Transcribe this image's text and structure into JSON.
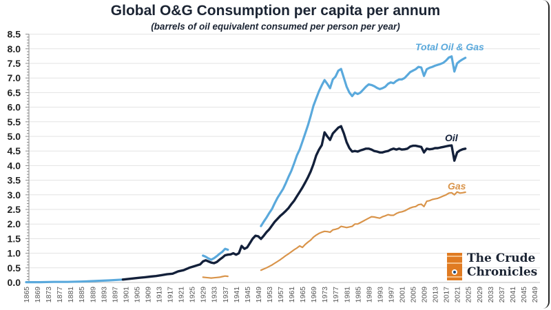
{
  "header": {
    "title": "Global O&G Consumption per capita per annum",
    "subtitle": "(barrels of oil equivalent consumed per person per year)"
  },
  "logo": {
    "line1": "The Crude",
    "line2": "Chronicles",
    "icon": "oil-barrel-icon"
  },
  "chart_data": {
    "type": "line",
    "title": "Global O&G Consumption per capita per annum",
    "subtitle": "(barrels of oil equivalent consumed per person per year)",
    "xlabel": "",
    "ylabel": "",
    "xlim": [
      1865,
      2049
    ],
    "ylim": [
      0,
      8.5
    ],
    "grid": true,
    "y_ticks": [
      "0.0",
      "0.5",
      "1.0",
      "1.5",
      "2.0",
      "2.5",
      "3.0",
      "3.5",
      "4.0",
      "4.5",
      "5.0",
      "5.5",
      "6.0",
      "6.5",
      "7.0",
      "7.5",
      "8.0",
      "8.5"
    ],
    "x_ticks": [
      "1865",
      "1869",
      "1873",
      "1877",
      "1881",
      "1885",
      "1889",
      "1893",
      "1897",
      "1901",
      "1905",
      "1909",
      "1913",
      "1917",
      "1921",
      "1925",
      "1929",
      "1933",
      "1937",
      "1941",
      "1945",
      "1949",
      "1953",
      "1957",
      "1961",
      "1965",
      "1969",
      "1973",
      "1977",
      "1981",
      "1985",
      "1989",
      "1993",
      "1997",
      "2001",
      "2005",
      "2009",
      "2013",
      "2017",
      "2021",
      "2025",
      "2029",
      "2033",
      "2037",
      "2041",
      "2045",
      "2049"
    ],
    "legend": "inline-labels",
    "series": [
      {
        "name": "Total Oil & Gas",
        "label": "Total Oil & Gas",
        "color": "#5aa9dc",
        "segments": [
          {
            "x": [
              1865,
              1870,
              1875,
              1880,
              1885,
              1890,
              1895,
              1900
            ],
            "y": [
              0.01,
              0.01,
              0.02,
              0.02,
              0.03,
              0.05,
              0.07,
              0.1
            ]
          },
          {
            "x": [
              1929,
              1930,
              1931,
              1932,
              1933,
              1934,
              1935,
              1936,
              1937,
              1938
            ],
            "y": [
              0.92,
              0.88,
              0.82,
              0.78,
              0.83,
              0.9,
              0.98,
              1.05,
              1.15,
              1.12
            ]
          },
          {
            "x": [
              1950,
              1951,
              1952,
              1953,
              1954,
              1955,
              1956,
              1957,
              1958,
              1959,
              1960,
              1961,
              1962,
              1963,
              1964,
              1965,
              1966,
              1967,
              1968,
              1969,
              1970,
              1971,
              1972,
              1973,
              1974,
              1975,
              1976,
              1977,
              1978,
              1979,
              1980,
              1981,
              1982,
              1983,
              1984,
              1985,
              1986,
              1987,
              1988,
              1989,
              1990,
              1991,
              1992,
              1993,
              1994,
              1995,
              1996,
              1997,
              1998,
              1999,
              2000,
              2001,
              2002,
              2003,
              2004,
              2005,
              2006,
              2007,
              2008,
              2009,
              2010,
              2011,
              2012,
              2013,
              2014,
              2015,
              2016,
              2017,
              2018,
              2019,
              2020,
              2021,
              2022,
              2023,
              2024
            ],
            "y": [
              1.93,
              2.08,
              2.22,
              2.38,
              2.52,
              2.72,
              2.9,
              3.05,
              3.2,
              3.4,
              3.62,
              3.82,
              4.08,
              4.35,
              4.55,
              4.82,
              5.1,
              5.38,
              5.7,
              6.05,
              6.3,
              6.55,
              6.75,
              6.93,
              6.8,
              6.65,
              6.95,
              7.05,
              7.25,
              7.31,
              7.0,
              6.7,
              6.5,
              6.38,
              6.5,
              6.45,
              6.5,
              6.6,
              6.7,
              6.78,
              6.76,
              6.72,
              6.66,
              6.62,
              6.65,
              6.7,
              6.8,
              6.85,
              6.82,
              6.9,
              6.95,
              6.95,
              7.0,
              7.1,
              7.2,
              7.25,
              7.3,
              7.38,
              7.36,
              7.07,
              7.3,
              7.35,
              7.38,
              7.42,
              7.45,
              7.48,
              7.52,
              7.6,
              7.7,
              7.74,
              7.22,
              7.5,
              7.58,
              7.64,
              7.69
            ]
          }
        ]
      },
      {
        "name": "Oil",
        "label": "Oil",
        "color": "#13203a",
        "segments": [
          {
            "x": [
              1900,
              1902,
              1904,
              1906,
              1908,
              1910,
              1912,
              1914,
              1916,
              1918,
              1920,
              1922,
              1924,
              1926,
              1928,
              1929,
              1930,
              1931,
              1932,
              1933,
              1934,
              1935,
              1936,
              1937,
              1938,
              1939,
              1940,
              1941,
              1942,
              1943,
              1944,
              1945,
              1946,
              1947,
              1948,
              1949,
              1950,
              1951,
              1952,
              1953,
              1954,
              1955,
              1956,
              1957,
              1958,
              1959,
              1960,
              1961,
              1962,
              1963,
              1964,
              1965,
              1966,
              1967,
              1968,
              1969,
              1970,
              1971,
              1972,
              1973,
              1974,
              1975,
              1976,
              1977,
              1978,
              1979,
              1980,
              1981,
              1982,
              1983,
              1984,
              1985,
              1986,
              1987,
              1988,
              1989,
              1990,
              1991,
              1992,
              1993,
              1994,
              1995,
              1996,
              1997,
              1998,
              1999,
              2000,
              2001,
              2002,
              2003,
              2004,
              2005,
              2006,
              2007,
              2008,
              2009,
              2010,
              2011,
              2012,
              2013,
              2014,
              2015,
              2016,
              2017,
              2018,
              2019,
              2020,
              2021,
              2022,
              2023,
              2024
            ],
            "y": [
              0.1,
              0.12,
              0.14,
              0.16,
              0.18,
              0.2,
              0.22,
              0.25,
              0.28,
              0.3,
              0.38,
              0.42,
              0.5,
              0.56,
              0.62,
              0.72,
              0.76,
              0.72,
              0.68,
              0.66,
              0.7,
              0.78,
              0.85,
              0.93,
              0.95,
              0.96,
              1.0,
              0.95,
              1.0,
              1.25,
              1.15,
              1.2,
              1.35,
              1.5,
              1.6,
              1.58,
              1.49,
              1.6,
              1.72,
              1.82,
              1.95,
              2.08,
              2.18,
              2.28,
              2.36,
              2.45,
              2.55,
              2.68,
              2.8,
              2.95,
              3.1,
              3.25,
              3.42,
              3.6,
              3.8,
              4.05,
              4.35,
              4.55,
              4.7,
              5.14,
              5.0,
              4.88,
              5.1,
              5.2,
              5.3,
              5.35,
              5.1,
              4.8,
              4.6,
              4.48,
              4.5,
              4.48,
              4.52,
              4.55,
              4.58,
              4.58,
              4.55,
              4.5,
              4.48,
              4.45,
              4.45,
              4.48,
              4.5,
              4.55,
              4.58,
              4.55,
              4.58,
              4.55,
              4.56,
              4.58,
              4.65,
              4.68,
              4.68,
              4.66,
              4.64,
              4.45,
              4.58,
              4.56,
              4.57,
              4.6,
              4.6,
              4.62,
              4.64,
              4.66,
              4.68,
              4.69,
              4.17,
              4.45,
              4.52,
              4.56,
              4.58
            ]
          }
        ]
      },
      {
        "name": "Gas",
        "label": "Gas",
        "color": "#d9944a",
        "segments": [
          {
            "x": [
              1929,
              1930,
              1931,
              1932,
              1933,
              1934,
              1935,
              1936,
              1937,
              1938
            ],
            "y": [
              0.18,
              0.17,
              0.16,
              0.15,
              0.16,
              0.17,
              0.18,
              0.2,
              0.22,
              0.21
            ]
          },
          {
            "x": [
              1950,
              1951,
              1952,
              1953,
              1954,
              1955,
              1956,
              1957,
              1958,
              1959,
              1960,
              1961,
              1962,
              1963,
              1964,
              1965,
              1966,
              1967,
              1968,
              1969,
              1970,
              1971,
              1972,
              1973,
              1974,
              1975,
              1976,
              1977,
              1978,
              1979,
              1980,
              1981,
              1982,
              1983,
              1984,
              1985,
              1986,
              1987,
              1988,
              1989,
              1990,
              1991,
              1992,
              1993,
              1994,
              1995,
              1996,
              1997,
              1998,
              1999,
              2000,
              2001,
              2002,
              2003,
              2004,
              2005,
              2006,
              2007,
              2008,
              2009,
              2010,
              2011,
              2012,
              2013,
              2014,
              2015,
              2016,
              2017,
              2018,
              2019,
              2020,
              2021,
              2022,
              2023,
              2024
            ],
            "y": [
              0.42,
              0.46,
              0.5,
              0.55,
              0.6,
              0.66,
              0.72,
              0.78,
              0.85,
              0.92,
              0.98,
              1.05,
              1.12,
              1.18,
              1.25,
              1.2,
              1.3,
              1.38,
              1.45,
              1.55,
              1.62,
              1.68,
              1.72,
              1.75,
              1.74,
              1.72,
              1.8,
              1.82,
              1.85,
              1.92,
              1.9,
              1.88,
              1.9,
              1.92,
              2.0,
              2.0,
              2.05,
              2.1,
              2.15,
              2.2,
              2.25,
              2.24,
              2.22,
              2.2,
              2.25,
              2.28,
              2.32,
              2.3,
              2.3,
              2.36,
              2.4,
              2.42,
              2.45,
              2.5,
              2.55,
              2.58,
              2.6,
              2.66,
              2.68,
              2.6,
              2.78,
              2.8,
              2.84,
              2.86,
              2.88,
              2.92,
              2.96,
              3.0,
              3.06,
              3.07,
              3.0,
              3.1,
              3.06,
              3.07,
              3.09
            ]
          }
        ]
      }
    ]
  }
}
